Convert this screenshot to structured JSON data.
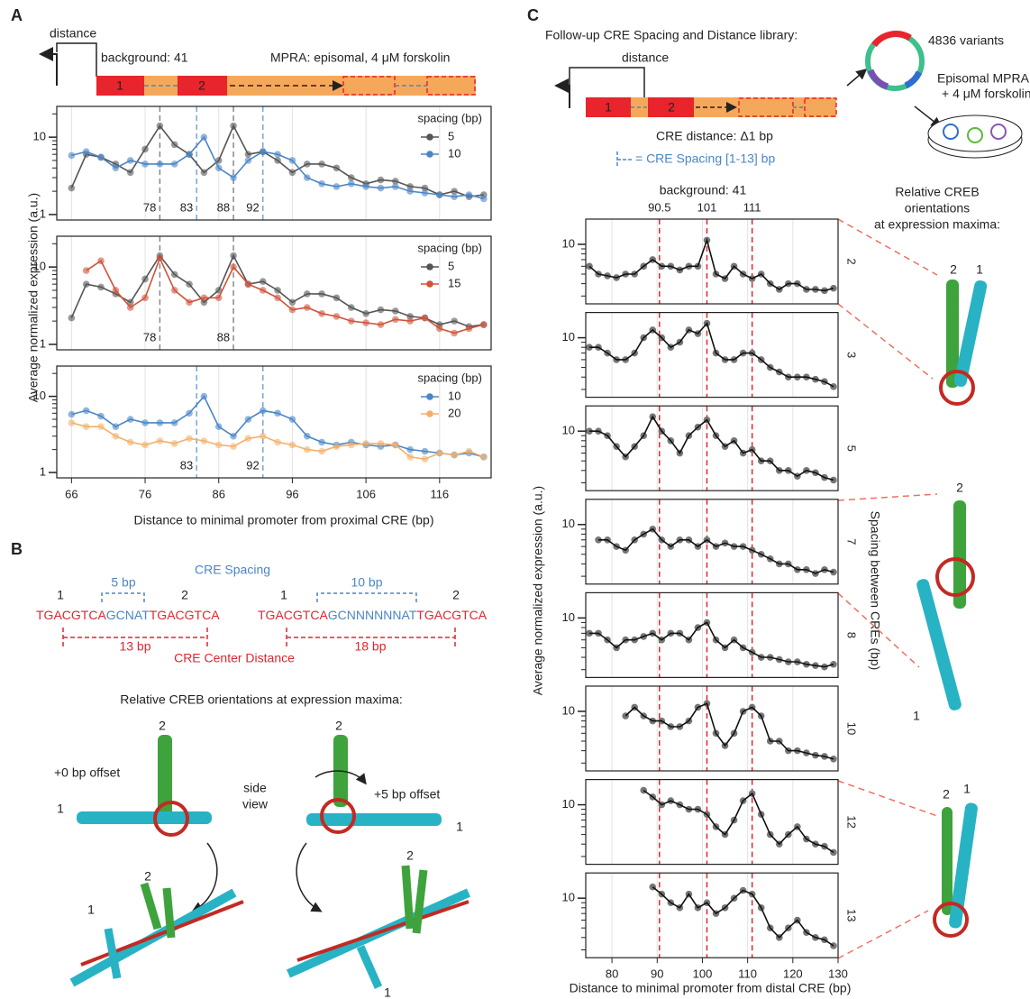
{
  "panel_labels": {
    "a": "A",
    "b": "B",
    "c": "C"
  },
  "panel_a": {
    "distance": "distance",
    "background": "background: 41",
    "mpra": "MPRA: episomal, 4 μM forskolin",
    "cre1": "1",
    "cre2": "2",
    "y_label": "Average normalized expression (a.u.)",
    "x_label": "Distance to minimal promoter from proximal CRE (bp)"
  },
  "panel_b": {
    "spacing_title": "CRE Spacing",
    "spacing_a": "5 bp",
    "spacing_b": "10 bp",
    "seq_a": [
      "TGACGTCA",
      "GCNAT",
      "TGACGTCA"
    ],
    "seq_b": [
      "TGACGTCA",
      "GCNNNNNNAT",
      "TGACGTCA"
    ],
    "num_a": [
      "1",
      "2"
    ],
    "num_b": [
      "1",
      "2"
    ],
    "distance_a": "13 bp",
    "distance_b": "18 bp",
    "distance_title": "CRE Center Distance",
    "orientation_title": "Relative CREB orientations at expression maxima:",
    "offset_a": "+0 bp offset",
    "offset_b": "+5 bp offset",
    "side_view": [
      "side",
      "view"
    ],
    "struct_labels": [
      "2",
      "1",
      "2",
      "1",
      "2",
      "1",
      "2",
      "1"
    ]
  },
  "panel_c": {
    "library": "Follow-up CRE Spacing and Distance library:",
    "distance": "distance",
    "cre1": "1",
    "cre2": "2",
    "cre_distance": "CRE distance: Δ1 bp",
    "cre_spacing": "= CRE Spacing [1-13] bp",
    "variants": "4836 variants",
    "mpra": [
      "Episomal MPRA",
      "+ 4 μM forskolin"
    ],
    "background": "background: 41",
    "orientation_title": [
      "Relative CREB",
      "orientations",
      "at expression maxima:"
    ],
    "spacing_label": "Spacing between CREs (bp)",
    "y_label": "Average normalized expression (a.u.)",
    "x_label": "Distance to minimal promoter from distal CRE (bp)",
    "vlines": [
      90.5,
      101,
      111
    ],
    "vline_color": "#e0262f",
    "struct_labels": [
      "2",
      "1",
      "2",
      "1",
      "2",
      "1"
    ]
  },
  "chart_data": [
    {
      "type": "line",
      "log_y": true,
      "grid": true,
      "legend": "upper right",
      "legend_title": "spacing (bp)",
      "x": [
        66,
        68,
        70,
        72,
        74,
        76,
        78,
        80,
        82,
        84,
        86,
        88,
        90,
        92,
        94,
        96,
        98,
        100,
        102,
        104,
        106,
        108,
        110,
        112,
        114,
        116,
        118,
        120,
        122
      ],
      "series": [
        {
          "name": "5",
          "color": "#555555",
          "values": [
            2.2,
            6,
            5.5,
            4.5,
            3.5,
            7,
            14,
            8,
            6,
            3.5,
            5,
            14,
            6,
            6.5,
            5,
            3.5,
            4.5,
            4.5,
            4,
            3,
            2.5,
            2.8,
            2.7,
            2.3,
            2.2,
            1.8,
            2,
            1.7,
            1.8
          ]
        },
        {
          "name": "10",
          "color": "#4a86c6",
          "values": [
            5.8,
            6.5,
            5.5,
            4,
            5,
            4.5,
            4.5,
            4.5,
            6,
            10,
            4,
            3,
            5,
            6.5,
            6,
            5,
            3,
            2.5,
            2.3,
            2.5,
            2.3,
            2.2,
            2.3,
            2,
            1.9,
            1.8,
            1.7,
            1.8,
            1.6
          ]
        }
      ],
      "xlim": [
        64,
        123
      ],
      "ylim": [
        0.85,
        25
      ],
      "xticks": [
        66,
        76,
        86,
        96,
        106,
        116
      ],
      "yticks": [
        1,
        10
      ],
      "yminor": [
        2,
        3,
        4,
        5,
        6,
        7,
        8,
        9,
        20
      ],
      "vlines": [
        {
          "value": 78,
          "color": "#888888"
        },
        {
          "value": 83,
          "color": "#7aa6d6"
        },
        {
          "value": 88,
          "color": "#888888"
        },
        {
          "value": 92,
          "color": "#7aa6d6"
        }
      ]
    },
    {
      "type": "line",
      "log_y": true,
      "grid": true,
      "legend": "upper right",
      "legend_title": "spacing (bp)",
      "x": [
        66,
        68,
        70,
        72,
        74,
        76,
        78,
        80,
        82,
        84,
        86,
        88,
        90,
        92,
        94,
        96,
        98,
        100,
        102,
        104,
        106,
        108,
        110,
        112,
        114,
        116,
        118,
        120,
        122
      ],
      "series": [
        {
          "name": "5",
          "color": "#555555",
          "values": [
            2.2,
            6,
            5.5,
            4.5,
            3.5,
            7,
            14,
            8,
            6,
            3.5,
            5,
            14,
            6,
            6.5,
            5,
            3.5,
            4.5,
            4.5,
            4,
            3,
            2.5,
            2.8,
            2.7,
            2.3,
            2.2,
            1.8,
            2,
            1.7,
            1.8
          ]
        },
        {
          "name": "15",
          "color": "#d0533a",
          "values": [
            null,
            9,
            12,
            5,
            3,
            4,
            13,
            5,
            3.5,
            4,
            4,
            10,
            6,
            5,
            4,
            2.8,
            3,
            2.5,
            2.3,
            2,
            1.9,
            1.8,
            2.1,
            2,
            2.2,
            1.6,
            1.4,
            1.6,
            1.8
          ]
        }
      ],
      "xlim": [
        64,
        123
      ],
      "ylim": [
        0.85,
        25
      ],
      "xticks": [
        66,
        76,
        86,
        96,
        106,
        116
      ],
      "yticks": [
        1,
        10
      ],
      "yminor": [
        2,
        3,
        4,
        5,
        6,
        7,
        8,
        9,
        20
      ],
      "vlines": [
        {
          "value": 78,
          "color": "#888888"
        },
        {
          "value": 88,
          "color": "#888888"
        }
      ]
    },
    {
      "type": "line",
      "log_y": true,
      "grid": true,
      "legend": "upper right",
      "legend_title": "spacing (bp)",
      "x": [
        66,
        68,
        70,
        72,
        74,
        76,
        78,
        80,
        82,
        84,
        86,
        88,
        90,
        92,
        94,
        96,
        98,
        100,
        102,
        104,
        106,
        108,
        110,
        112,
        114,
        116,
        118,
        120,
        122
      ],
      "series": [
        {
          "name": "10",
          "color": "#4a86c6",
          "values": [
            5.8,
            6.5,
            5.5,
            4,
            5,
            4.5,
            4.5,
            4.5,
            6,
            10,
            4,
            3,
            5,
            6.5,
            6,
            5,
            3,
            2.5,
            2.3,
            2.5,
            2.3,
            2.2,
            2.3,
            2,
            1.9,
            1.8,
            1.7,
            1.8,
            1.6
          ]
        },
        {
          "name": "20",
          "color": "#f4b06a",
          "values": [
            4.5,
            4,
            4,
            3,
            2.5,
            2.3,
            2.6,
            2.4,
            2.8,
            2.6,
            2.3,
            2.2,
            2.8,
            3,
            2.5,
            2.3,
            2,
            1.9,
            2.2,
            2.3,
            2.4,
            2.4,
            2.3,
            1.6,
            1.5,
            1.8,
            1.7,
            1.9,
            1.6
          ]
        }
      ],
      "xlim": [
        64,
        123
      ],
      "ylim": [
        0.85,
        25
      ],
      "xticks": [
        66,
        76,
        86,
        96,
        106,
        116
      ],
      "yticks": [
        1,
        10
      ],
      "yminor": [
        2,
        3,
        4,
        5,
        6,
        7,
        8,
        9,
        20
      ],
      "vlines": [
        {
          "value": 83,
          "color": "#7aa6d6"
        },
        {
          "value": 92,
          "color": "#7aa6d6"
        }
      ]
    },
    {
      "type": "line",
      "log_y": true,
      "grid": true,
      "spacing": 2,
      "color": "#111111",
      "point_color": "#777777",
      "x": [
        75,
        77,
        79,
        81,
        83,
        85,
        87,
        89,
        91,
        93,
        95,
        97,
        99,
        101,
        103,
        105,
        107,
        109,
        111,
        113,
        115,
        117,
        119,
        121,
        123,
        125,
        127,
        129
      ],
      "values": [
        6,
        5,
        4.8,
        4.6,
        5,
        5,
        6,
        7,
        6,
        6,
        5.5,
        6,
        6,
        11,
        5,
        4.5,
        6,
        5,
        4.5,
        5,
        4,
        3.5,
        4,
        4,
        3.5,
        3.5,
        3.4,
        3.6
      ],
      "xlim": [
        74.2,
        130
      ],
      "ylim": [
        2.5,
        18
      ],
      "xticks": [
        80,
        90,
        100,
        110,
        120,
        130
      ],
      "yticks": [
        10
      ],
      "yminor": [
        3,
        4,
        5,
        6,
        7,
        8,
        9
      ]
    },
    {
      "type": "line",
      "log_y": true,
      "grid": true,
      "spacing": 3,
      "color": "#111111",
      "point_color": "#777777",
      "x": [
        75,
        77,
        79,
        81,
        83,
        85,
        87,
        89,
        91,
        93,
        95,
        97,
        99,
        101,
        103,
        105,
        107,
        109,
        111,
        113,
        115,
        117,
        119,
        121,
        123,
        125,
        127,
        129
      ],
      "values": [
        8,
        8,
        7,
        6,
        6,
        7,
        10,
        12,
        10,
        8,
        9,
        12,
        11,
        14,
        7,
        6,
        6,
        7,
        7,
        6,
        5,
        4.5,
        4,
        4,
        4,
        3.8,
        3.6,
        3.2
      ],
      "xlim": [
        74.2,
        130
      ],
      "ylim": [
        2.5,
        18
      ],
      "xticks": [
        80,
        90,
        100,
        110,
        120,
        130
      ],
      "yticks": [
        10
      ],
      "yminor": [
        3,
        4,
        5,
        6,
        7,
        8,
        9
      ]
    },
    {
      "type": "line",
      "log_y": true,
      "grid": true,
      "spacing": 5,
      "color": "#111111",
      "point_color": "#777777",
      "x": [
        75,
        77,
        79,
        81,
        83,
        85,
        87,
        89,
        91,
        93,
        95,
        97,
        99,
        101,
        103,
        105,
        107,
        109,
        111,
        113,
        115,
        117,
        119,
        121,
        123,
        125,
        127,
        129
      ],
      "values": [
        10,
        10,
        9,
        7,
        5.5,
        7,
        9,
        14,
        10,
        8,
        6,
        9,
        11,
        13,
        9,
        7,
        8,
        6,
        6.5,
        5,
        5,
        4,
        4,
        3.5,
        4,
        3.8,
        3.4,
        3.2
      ],
      "xlim": [
        74.2,
        130
      ],
      "ylim": [
        2.5,
        18
      ],
      "xticks": [
        80,
        90,
        100,
        110,
        120,
        130
      ],
      "yticks": [
        10
      ],
      "yminor": [
        3,
        4,
        5,
        6,
        7,
        8,
        9
      ]
    },
    {
      "type": "line",
      "log_y": true,
      "grid": true,
      "spacing": 7,
      "color": "#111111",
      "point_color": "#777777",
      "x": [
        75,
        77,
        79,
        81,
        83,
        85,
        87,
        89,
        91,
        93,
        95,
        97,
        99,
        101,
        103,
        105,
        107,
        109,
        111,
        113,
        115,
        117,
        119,
        121,
        123,
        125,
        127,
        129
      ],
      "values": [
        null,
        7,
        7,
        6,
        5.5,
        7,
        8,
        9,
        7,
        6,
        7,
        7,
        6,
        7,
        6,
        6.5,
        6,
        6,
        5.5,
        5,
        4.5,
        4,
        4,
        3.5,
        3.5,
        3.2,
        3.5,
        3.3
      ],
      "xlim": [
        74.2,
        130
      ],
      "ylim": [
        2.5,
        18
      ],
      "xticks": [
        80,
        90,
        100,
        110,
        120,
        130
      ],
      "yticks": [
        10
      ],
      "yminor": [
        3,
        4,
        5,
        6,
        7,
        8,
        9
      ]
    },
    {
      "type": "line",
      "log_y": true,
      "grid": true,
      "spacing": 8,
      "color": "#111111",
      "point_color": "#777777",
      "x": [
        75,
        77,
        79,
        81,
        83,
        85,
        87,
        89,
        91,
        93,
        95,
        97,
        99,
        101,
        103,
        105,
        107,
        109,
        111,
        113,
        115,
        117,
        119,
        121,
        123,
        125,
        127,
        129
      ],
      "values": [
        7,
        7,
        6,
        5,
        6,
        6,
        6.5,
        7,
        6,
        7,
        7,
        6,
        8,
        9,
        6,
        5,
        6,
        5,
        4.5,
        4,
        4,
        3.8,
        3.6,
        3.6,
        3.4,
        3.3,
        3.2,
        3.4
      ],
      "xlim": [
        74.2,
        130
      ],
      "ylim": [
        2.5,
        18
      ],
      "xticks": [
        80,
        90,
        100,
        110,
        120,
        130
      ],
      "yticks": [
        10
      ],
      "yminor": [
        3,
        4,
        5,
        6,
        7,
        8,
        9
      ]
    },
    {
      "type": "line",
      "log_y": true,
      "grid": true,
      "spacing": 10,
      "color": "#111111",
      "point_color": "#777777",
      "x": [
        75,
        77,
        79,
        81,
        83,
        85,
        87,
        89,
        91,
        93,
        95,
        97,
        99,
        101,
        103,
        105,
        107,
        109,
        111,
        113,
        115,
        117,
        119,
        121,
        123,
        125,
        127,
        129
      ],
      "values": [
        null,
        null,
        null,
        null,
        9,
        11,
        9,
        8,
        8,
        7,
        7,
        8,
        11,
        12,
        6,
        4.5,
        6,
        10,
        11,
        9,
        5,
        5,
        4,
        4,
        3.8,
        3.6,
        3.5,
        3.3
      ],
      "xlim": [
        74.2,
        130
      ],
      "ylim": [
        2.5,
        18
      ],
      "xticks": [
        80,
        90,
        100,
        110,
        120,
        130
      ],
      "yticks": [
        10
      ],
      "yminor": [
        3,
        4,
        5,
        6,
        7,
        8,
        9
      ]
    },
    {
      "type": "line",
      "log_y": true,
      "grid": true,
      "spacing": 12,
      "color": "#111111",
      "point_color": "#777777",
      "x": [
        75,
        77,
        79,
        81,
        83,
        85,
        87,
        89,
        91,
        93,
        95,
        97,
        99,
        101,
        103,
        105,
        107,
        109,
        111,
        113,
        115,
        117,
        119,
        121,
        123,
        125,
        127,
        129
      ],
      "values": [
        null,
        null,
        null,
        null,
        null,
        null,
        14,
        12,
        10,
        11,
        10,
        9,
        9,
        8,
        6,
        5,
        7,
        11,
        13,
        8,
        5,
        4,
        5,
        6,
        4.5,
        4,
        3.8,
        3.3
      ],
      "xlim": [
        74.2,
        130
      ],
      "ylim": [
        2.5,
        18
      ],
      "xticks": [
        80,
        90,
        100,
        110,
        120,
        130
      ],
      "yticks": [
        10
      ],
      "yminor": [
        3,
        4,
        5,
        6,
        7,
        8,
        9
      ]
    },
    {
      "type": "line",
      "log_y": true,
      "grid": true,
      "spacing": 13,
      "color": "#111111",
      "point_color": "#777777",
      "x": [
        75,
        77,
        79,
        81,
        83,
        85,
        87,
        89,
        91,
        93,
        95,
        97,
        99,
        101,
        103,
        105,
        107,
        109,
        111,
        113,
        115,
        117,
        119,
        121,
        123,
        125,
        127,
        129
      ],
      "values": [
        null,
        null,
        null,
        null,
        null,
        null,
        null,
        13,
        11,
        9,
        8,
        11,
        8,
        9,
        7,
        8,
        10,
        12,
        11,
        8,
        5,
        4,
        5,
        6,
        4.5,
        4,
        3.8,
        3.3
      ],
      "xlim": [
        74.2,
        130
      ],
      "ylim": [
        2.5,
        18
      ],
      "xticks": [
        80,
        90,
        100,
        110,
        120,
        130
      ],
      "yticks": [
        10
      ],
      "yminor": [
        3,
        4,
        5,
        6,
        7,
        8,
        9
      ]
    }
  ]
}
